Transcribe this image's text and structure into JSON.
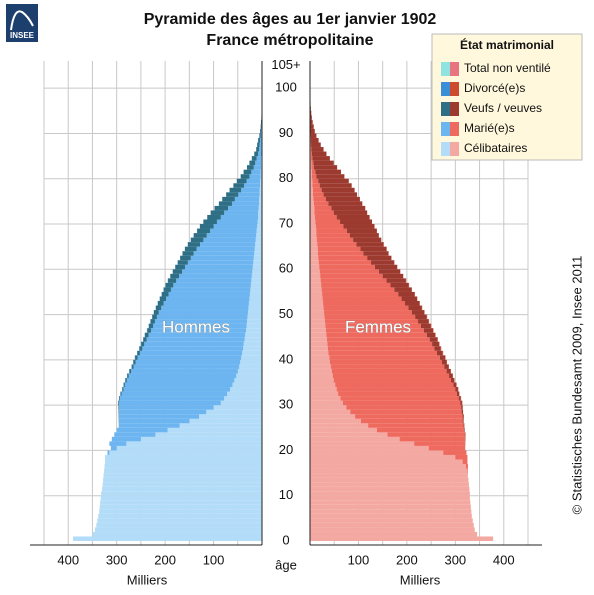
{
  "chart_data": {
    "type": "population_pyramid",
    "logo_text": "INSEE",
    "title": "Pyramide des âges au 1er janvier 1902",
    "subtitle": "France métropolitaine",
    "left_label": "Hommes",
    "right_label": "Femmes",
    "x_label": "Milliers",
    "y_label": "âge",
    "legend_title": "État matrimonial",
    "source": "© Statistisches Bundesamt 2009, Insee 2011",
    "xlim": [
      0,
      450
    ],
    "xticks": [
      100,
      200,
      300,
      400
    ],
    "minor_xticks": [
      50,
      150,
      250,
      350,
      450
    ],
    "ylim": [
      0,
      106
    ],
    "yticks": [
      0,
      10,
      20,
      30,
      40,
      50,
      60,
      70,
      80,
      90,
      100,
      {
        "value": 105,
        "label": "105+"
      }
    ],
    "grid": true,
    "ages": [
      0,
      1,
      2,
      3,
      4,
      5,
      6,
      7,
      8,
      9,
      10,
      11,
      12,
      13,
      14,
      15,
      16,
      17,
      18,
      19,
      20,
      21,
      22,
      23,
      24,
      25,
      26,
      27,
      28,
      29,
      30,
      31,
      32,
      33,
      34,
      35,
      36,
      37,
      38,
      39,
      40,
      41,
      42,
      43,
      44,
      45,
      46,
      47,
      48,
      49,
      50,
      51,
      52,
      53,
      54,
      55,
      56,
      57,
      58,
      59,
      60,
      61,
      62,
      63,
      64,
      65,
      66,
      67,
      68,
      69,
      70,
      71,
      72,
      73,
      74,
      75,
      76,
      77,
      78,
      79,
      80,
      81,
      82,
      83,
      84,
      85,
      86,
      87,
      88,
      89,
      90,
      91,
      92,
      93,
      94,
      95,
      96,
      97,
      98,
      99,
      100,
      101,
      102,
      103,
      104,
      105
    ],
    "series": [
      {
        "name": "Total non ventilé",
        "color_men": "#8fe3e0",
        "color_women": "#e8747f",
        "men": [
          0,
          0,
          0,
          0,
          0,
          0,
          0,
          0,
          0,
          0,
          0,
          0,
          0,
          0,
          0,
          0,
          0,
          0,
          0,
          0,
          0,
          0,
          0,
          0,
          0,
          0,
          0,
          0,
          0,
          0,
          0,
          0,
          0,
          0,
          0,
          0,
          0,
          0,
          0,
          0,
          0,
          0,
          0,
          0,
          0,
          0,
          0,
          0,
          0,
          0,
          0,
          0,
          0,
          0,
          0,
          0,
          0,
          0,
          0,
          0,
          0,
          0,
          0,
          0,
          0,
          0,
          0,
          0,
          0,
          0,
          0,
          0,
          0,
          0,
          0,
          0,
          0,
          0,
          0,
          0,
          0,
          0,
          0,
          0,
          0,
          0,
          0,
          0,
          0,
          0,
          0,
          0,
          0,
          0,
          0,
          0,
          0,
          0,
          0,
          0,
          0,
          0,
          0,
          0,
          0,
          0
        ],
        "women": [
          0,
          0,
          0,
          0,
          0,
          0,
          0,
          0,
          0,
          0,
          0,
          0,
          0,
          0,
          0,
          0,
          0,
          0,
          0,
          0,
          0,
          0,
          0,
          0,
          0,
          0,
          0,
          0,
          0,
          0,
          0,
          0,
          0,
          0,
          0,
          0,
          0,
          0,
          0,
          0,
          0,
          0,
          0,
          0,
          0,
          0,
          0,
          0,
          0,
          0,
          0,
          0,
          0,
          0,
          0,
          0,
          0,
          0,
          0,
          0,
          0,
          0,
          0,
          0,
          0,
          0,
          0,
          0,
          0,
          0,
          0,
          0,
          0,
          0,
          0,
          0,
          0,
          0,
          0,
          0,
          0,
          0,
          0,
          0,
          0,
          0,
          0,
          0,
          0,
          0,
          0,
          0,
          0,
          0,
          0,
          0,
          0,
          0,
          0,
          0,
          0,
          0,
          0,
          0,
          0,
          0
        ]
      },
      {
        "name": "Divorcé(e)s",
        "color_men": "#3a8fd6",
        "color_women": "#cc4a2e",
        "men": [
          0,
          0,
          0,
          0,
          0,
          0,
          0,
          0,
          0,
          0,
          0,
          0,
          0,
          0,
          0,
          0,
          0,
          0,
          0,
          0,
          0,
          0,
          0,
          0,
          0,
          0.1,
          0.1,
          0.1,
          0.1,
          0.1,
          0.5,
          0.5,
          0.5,
          0.5,
          0.5,
          0.5,
          0.5,
          0.5,
          0.5,
          0.5,
          0.6,
          0.6,
          0.6,
          0.6,
          0.6,
          0.6,
          0.6,
          0.6,
          0.6,
          0.6,
          0.5,
          0.5,
          0.5,
          0.5,
          0.5,
          0.5,
          0.5,
          0.5,
          0.5,
          0.5,
          0.3,
          0.3,
          0.3,
          0.3,
          0.3,
          0.3,
          0.3,
          0.3,
          0.3,
          0.3,
          0.1,
          0.1,
          0.1,
          0.1,
          0.1,
          0.1,
          0.1,
          0.1,
          0.1,
          0.1,
          0,
          0,
          0,
          0,
          0,
          0,
          0,
          0,
          0,
          0,
          0,
          0,
          0,
          0,
          0,
          0,
          0,
          0,
          0,
          0,
          0,
          0,
          0,
          0,
          0,
          0
        ],
        "women": [
          0,
          0,
          0,
          0,
          0,
          0,
          0,
          0,
          0,
          0,
          0,
          0,
          0,
          0,
          0,
          0,
          0,
          0,
          0,
          0,
          0,
          0,
          0,
          0,
          0,
          0.2,
          0.2,
          0.2,
          0.2,
          0.2,
          0.8,
          0.8,
          0.8,
          0.8,
          0.8,
          0.8,
          0.8,
          0.8,
          0.8,
          0.8,
          0.9,
          0.9,
          0.9,
          0.9,
          0.9,
          0.9,
          0.9,
          0.9,
          0.9,
          0.9,
          0.6,
          0.6,
          0.6,
          0.6,
          0.6,
          0.6,
          0.6,
          0.6,
          0.6,
          0.6,
          0.3,
          0.3,
          0.3,
          0.3,
          0.3,
          0.3,
          0.3,
          0.3,
          0.3,
          0.3,
          0.1,
          0.1,
          0.1,
          0.1,
          0.1,
          0.1,
          0.1,
          0.1,
          0.1,
          0.1,
          0,
          0,
          0,
          0,
          0,
          0,
          0,
          0,
          0,
          0,
          0,
          0,
          0,
          0,
          0,
          0,
          0,
          0,
          0,
          0,
          0,
          0,
          0,
          0,
          0,
          0
        ]
      },
      {
        "name": "Veufs / veuves",
        "color_men": "#2f6f86",
        "color_women": "#9c3a30",
        "men": [
          0,
          0,
          0,
          0,
          0,
          0,
          0,
          0,
          0,
          0,
          0,
          0,
          0,
          0,
          0,
          0,
          0,
          0,
          0,
          0,
          0,
          0,
          0,
          0,
          0,
          0.5,
          0.7,
          0.9,
          1.1,
          1.3,
          1.5,
          1.8,
          2,
          2.3,
          2.6,
          3,
          3.3,
          3.6,
          4,
          4.4,
          5,
          5.5,
          6,
          6.5,
          7,
          7.5,
          8,
          8.5,
          9,
          9.5,
          10,
          11,
          12,
          13,
          14,
          15,
          16,
          17,
          18,
          19,
          20,
          21,
          22,
          23,
          24,
          25,
          26,
          27,
          27,
          28,
          28,
          28,
          28,
          28,
          27,
          26,
          25,
          24,
          22,
          20,
          18,
          16,
          14,
          12,
          10,
          8,
          6,
          5,
          4,
          3,
          2,
          1.5,
          1.1,
          0.8,
          0.5,
          0.3,
          0.2,
          0.1,
          0.1,
          0,
          0,
          0,
          0,
          0,
          0,
          0
        ],
        "women": [
          0,
          0,
          0,
          0,
          0,
          0,
          0,
          0,
          0,
          0,
          0,
          0,
          0,
          0,
          0,
          0,
          0,
          0,
          0,
          0,
          0.3,
          0.5,
          0.8,
          1,
          1.3,
          1.6,
          2,
          2.4,
          2.8,
          3.2,
          3.7,
          4.2,
          4.8,
          5.4,
          6,
          6.7,
          7.4,
          8.2,
          9,
          10,
          11,
          12,
          13,
          14.5,
          16,
          17.5,
          19,
          20.5,
          22,
          24,
          26,
          28,
          30,
          32,
          34,
          36,
          38,
          40,
          42,
          44,
          46,
          48,
          50,
          52,
          54,
          56,
          58,
          60,
          62,
          64,
          66,
          68,
          69,
          70,
          70,
          70,
          69,
          68,
          66,
          63,
          58,
          53,
          48,
          42,
          36,
          30,
          25,
          20,
          16,
          12,
          9,
          7,
          5,
          3.5,
          2.5,
          1.7,
          1.1,
          0.7,
          0.4,
          0.2,
          0.1,
          0.1,
          0,
          0,
          0,
          0
        ]
      },
      {
        "name": "Marié(e)s",
        "color_men": "#6cb5f0",
        "color_women": "#ef6a5e",
        "men": [
          0,
          0,
          0,
          0,
          0,
          0,
          0,
          0,
          0,
          0,
          0,
          0,
          0,
          0,
          0,
          0,
          0,
          0,
          1,
          4,
          12,
          35,
          60,
          85,
          105,
          125,
          145,
          165,
          180,
          195,
          210,
          215,
          218,
          220,
          222,
          222,
          222,
          220,
          218,
          216,
          214,
          211,
          208,
          205,
          202,
          199,
          196,
          193,
          190,
          187,
          184,
          180,
          176,
          172,
          168,
          164,
          160,
          155,
          150,
          145,
          140,
          135,
          130,
          125,
          120,
          114,
          108,
          102,
          96,
          90,
          84,
          77,
          70,
          63,
          56,
          50,
          44,
          38,
          33,
          28,
          23,
          19,
          15,
          12,
          9,
          7,
          5,
          4,
          3,
          2,
          1.5,
          1,
          0.7,
          0.4,
          0.3,
          0.2,
          0,
          0,
          0,
          0,
          0,
          0,
          0,
          0,
          0,
          0
        ],
        "women": [
          0,
          0,
          0,
          0,
          0,
          0,
          0,
          0,
          0,
          0,
          0,
          0,
          0,
          0,
          0,
          1,
          4,
          10,
          25,
          48,
          75,
          105,
          135,
          160,
          180,
          197,
          210,
          222,
          230,
          237,
          242,
          244,
          245,
          245,
          244,
          242,
          240,
          237,
          234,
          231,
          228,
          224,
          220,
          216,
          212,
          207,
          202,
          197,
          192,
          187,
          181,
          175,
          169,
          163,
          157,
          150,
          143,
          136,
          129,
          122,
          115,
          108,
          101,
          94,
          88,
          81,
          75,
          69,
          63,
          57,
          51,
          45,
          40,
          35,
          30,
          26,
          22,
          18,
          15,
          12,
          9,
          7,
          5,
          4,
          3,
          2,
          1.5,
          1,
          0.7,
          0.5,
          0.3,
          0.2,
          0.1,
          0,
          0,
          0,
          0,
          0,
          0,
          0,
          0,
          0,
          0,
          0,
          0,
          0
        ]
      },
      {
        "name": "Célibataires",
        "color_men": "#b3dcf8",
        "color_women": "#f4a8a2",
        "men": [
          390,
          350,
          345,
          342,
          340,
          338,
          336,
          335,
          334,
          333,
          332,
          330,
          329,
          328,
          327,
          326,
          325,
          324,
          322,
          315,
          300,
          280,
          250,
          220,
          195,
          170,
          150,
          130,
          115,
          100,
          85,
          78,
          72,
          66,
          61,
          57,
          53,
          50,
          47,
          45,
          43,
          41,
          39,
          38,
          36,
          35,
          33,
          32,
          31,
          30,
          29,
          28,
          27,
          26,
          25,
          24,
          23,
          22,
          21,
          20,
          19,
          18,
          17,
          16,
          15,
          14,
          13,
          12,
          11,
          10,
          9,
          8,
          8,
          7,
          6,
          6,
          5,
          5,
          4,
          4,
          3,
          3,
          2,
          2,
          2,
          1,
          1,
          1,
          1,
          0.5,
          0.4,
          0.3,
          0.2,
          0.1,
          0.1,
          0,
          0,
          0,
          0,
          0,
          0,
          0,
          0,
          0,
          0,
          0
        ],
        "women": [
          378,
          345,
          340,
          338,
          336,
          334,
          333,
          332,
          331,
          330,
          330,
          329,
          328,
          327,
          326,
          325,
          322,
          315,
          300,
          275,
          245,
          215,
          185,
          160,
          138,
          120,
          105,
          93,
          83,
          75,
          68,
          63,
          58,
          55,
          52,
          49,
          47,
          45,
          43,
          41,
          40,
          38,
          37,
          36,
          35,
          34,
          33,
          32,
          31,
          30,
          29,
          28,
          27,
          26,
          25,
          24,
          23,
          22,
          21,
          20,
          19,
          18,
          17,
          16,
          16,
          15,
          14,
          13,
          13,
          12,
          11,
          10,
          9,
          9,
          8,
          7,
          6,
          6,
          5,
          5,
          4,
          4,
          3,
          3,
          2,
          2,
          1.5,
          1.2,
          1,
          0.8,
          0.6,
          0.5,
          0.4,
          0.3,
          0.2,
          0.1,
          0.1,
          0,
          0,
          0,
          0,
          0,
          0,
          0,
          0,
          0
        ]
      }
    ]
  }
}
